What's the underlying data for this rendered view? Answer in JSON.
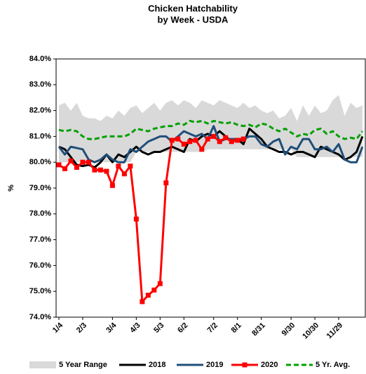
{
  "chart_data": {
    "type": "line",
    "title": "Chicken Hatchability",
    "subtitle": "by Week - USDA",
    "y_label": "%",
    "categories": [
      "1/4",
      null,
      null,
      null,
      "2/3",
      null,
      null,
      null,
      null,
      "3/4",
      null,
      null,
      null,
      "4/3",
      null,
      null,
      null,
      "5/3",
      null,
      null,
      null,
      "6/2",
      null,
      null,
      null,
      null,
      "7/2",
      null,
      null,
      null,
      "8/1",
      null,
      null,
      null,
      "8/31",
      null,
      null,
      null,
      null,
      "9/30",
      null,
      null,
      null,
      "10/30",
      null,
      null,
      null,
      "11/29",
      null,
      null,
      null,
      null
    ],
    "ylim": [
      74,
      84
    ],
    "yticks": [
      {
        "value": 74,
        "label": "74.0%"
      },
      {
        "value": 75,
        "label": "75.0%"
      },
      {
        "value": 76,
        "label": "76.0%"
      },
      {
        "value": 77,
        "label": "77.0%"
      },
      {
        "value": 78,
        "label": "78.0%"
      },
      {
        "value": 79,
        "label": "79.0%"
      },
      {
        "value": 80,
        "label": "80.0%"
      },
      {
        "value": 81,
        "label": "81.0%"
      },
      {
        "value": 82,
        "label": "82.0%"
      },
      {
        "value": 83,
        "label": "83.0%"
      },
      {
        "value": 84,
        "label": "84.0%"
      }
    ],
    "grid": false,
    "legend": "bottom",
    "series": [
      {
        "name": "5 Year Range",
        "color": "#d9d9d9",
        "low": [
          80.0,
          80.0,
          80.0,
          80.0,
          80.0,
          80.0,
          80.0,
          80.0,
          80.0,
          80.0,
          80.0,
          80.0,
          80.0,
          80.4,
          80.4,
          80.4,
          80.4,
          80.4,
          80.4,
          80.4,
          80.4,
          80.4,
          80.4,
          80.4,
          80.4,
          80.5,
          80.5,
          80.5,
          80.5,
          80.5,
          80.5,
          80.5,
          80.5,
          80.5,
          80.5,
          80.5,
          80.5,
          80.5,
          80.5,
          80.5,
          80.2,
          80.2,
          80.2,
          80.2,
          80.2,
          80.2,
          80.2,
          80.2,
          80.2,
          80.2,
          80.2,
          80.2
        ],
        "high": [
          82.2,
          82.3,
          82.0,
          82.3,
          81.8,
          81.7,
          81.7,
          81.6,
          81.8,
          81.7,
          82.0,
          81.8,
          82.1,
          82.2,
          81.9,
          82.1,
          82.3,
          82.0,
          82.3,
          82.4,
          82.2,
          82.4,
          82.3,
          82.1,
          82.4,
          82.3,
          82.2,
          82.4,
          82.3,
          82.2,
          82.1,
          82.3,
          82.1,
          82.2,
          82.0,
          81.9,
          82.0,
          81.7,
          81.8,
          82.1,
          81.6,
          82.2,
          81.8,
          82.2,
          81.9,
          82.0,
          82.4,
          82.6,
          81.8,
          82.3,
          82.1,
          82.2
        ]
      },
      {
        "name": "2018",
        "color": "#000000",
        "values": [
          80.6,
          80.5,
          80.2,
          79.9,
          79.85,
          79.9,
          79.8,
          80.0,
          80.3,
          80.0,
          80.3,
          80.2,
          80.4,
          80.6,
          80.4,
          80.3,
          80.4,
          80.4,
          80.5,
          80.6,
          80.5,
          80.4,
          80.9,
          80.8,
          81.0,
          81.1,
          81.0,
          81.2,
          81.0,
          80.8,
          80.9,
          80.7,
          81.3,
          81.1,
          80.9,
          80.6,
          80.5,
          80.4,
          80.4,
          80.3,
          80.4,
          80.4,
          80.3,
          80.2,
          80.6,
          80.5,
          80.4,
          80.3,
          80.1,
          80.2,
          80.4,
          81.0
        ]
      },
      {
        "name": "2019",
        "color": "#1f4e79",
        "values": [
          80.6,
          80.3,
          80.6,
          80.55,
          80.5,
          80.1,
          80.0,
          80.1,
          80.3,
          80.1,
          80.0,
          80.0,
          80.5,
          80.4,
          80.6,
          80.8,
          80.9,
          81.0,
          81.0,
          80.8,
          81.0,
          81.2,
          81.1,
          81.0,
          81.1,
          80.9,
          81.4,
          80.8,
          80.9,
          80.9,
          80.9,
          80.9,
          81.0,
          81.0,
          80.7,
          80.6,
          80.8,
          80.9,
          80.3,
          80.6,
          80.5,
          80.9,
          80.9,
          80.5,
          80.5,
          80.6,
          80.4,
          80.7,
          80.1,
          80.0,
          80.0,
          80.6
        ]
      },
      {
        "name": "2020",
        "color": "#ff0000",
        "marker": "square",
        "values": [
          79.9,
          79.75,
          80.05,
          79.8,
          80.0,
          80.0,
          79.7,
          79.7,
          79.65,
          79.1,
          79.85,
          79.55,
          79.85,
          77.8,
          74.6,
          74.85,
          75.05,
          75.3,
          79.2,
          80.85,
          80.9,
          80.7,
          80.8,
          80.85,
          80.5,
          80.9,
          81.0,
          80.8,
          80.95,
          80.8,
          80.85,
          80.9,
          null,
          null,
          null,
          null,
          null,
          null,
          null,
          null,
          null,
          null,
          null,
          null,
          null,
          null,
          null,
          null,
          null,
          null,
          null,
          null
        ]
      },
      {
        "name": "5 Yr. Avg.",
        "color": "#00a000",
        "dash": true,
        "values": [
          81.25,
          81.2,
          81.25,
          81.2,
          81.0,
          80.9,
          80.9,
          80.95,
          81.0,
          81.0,
          81.0,
          81.0,
          81.1,
          81.3,
          81.25,
          81.2,
          81.3,
          81.35,
          81.4,
          81.4,
          81.5,
          81.45,
          81.6,
          81.55,
          81.6,
          81.5,
          81.6,
          81.55,
          81.5,
          81.55,
          81.45,
          81.4,
          81.45,
          81.35,
          81.5,
          81.45,
          81.3,
          81.2,
          81.3,
          81.15,
          81.0,
          81.1,
          81.05,
          81.25,
          81.3,
          81.1,
          81.2,
          81.0,
          80.9,
          80.95,
          80.9,
          81.2
        ]
      }
    ]
  }
}
